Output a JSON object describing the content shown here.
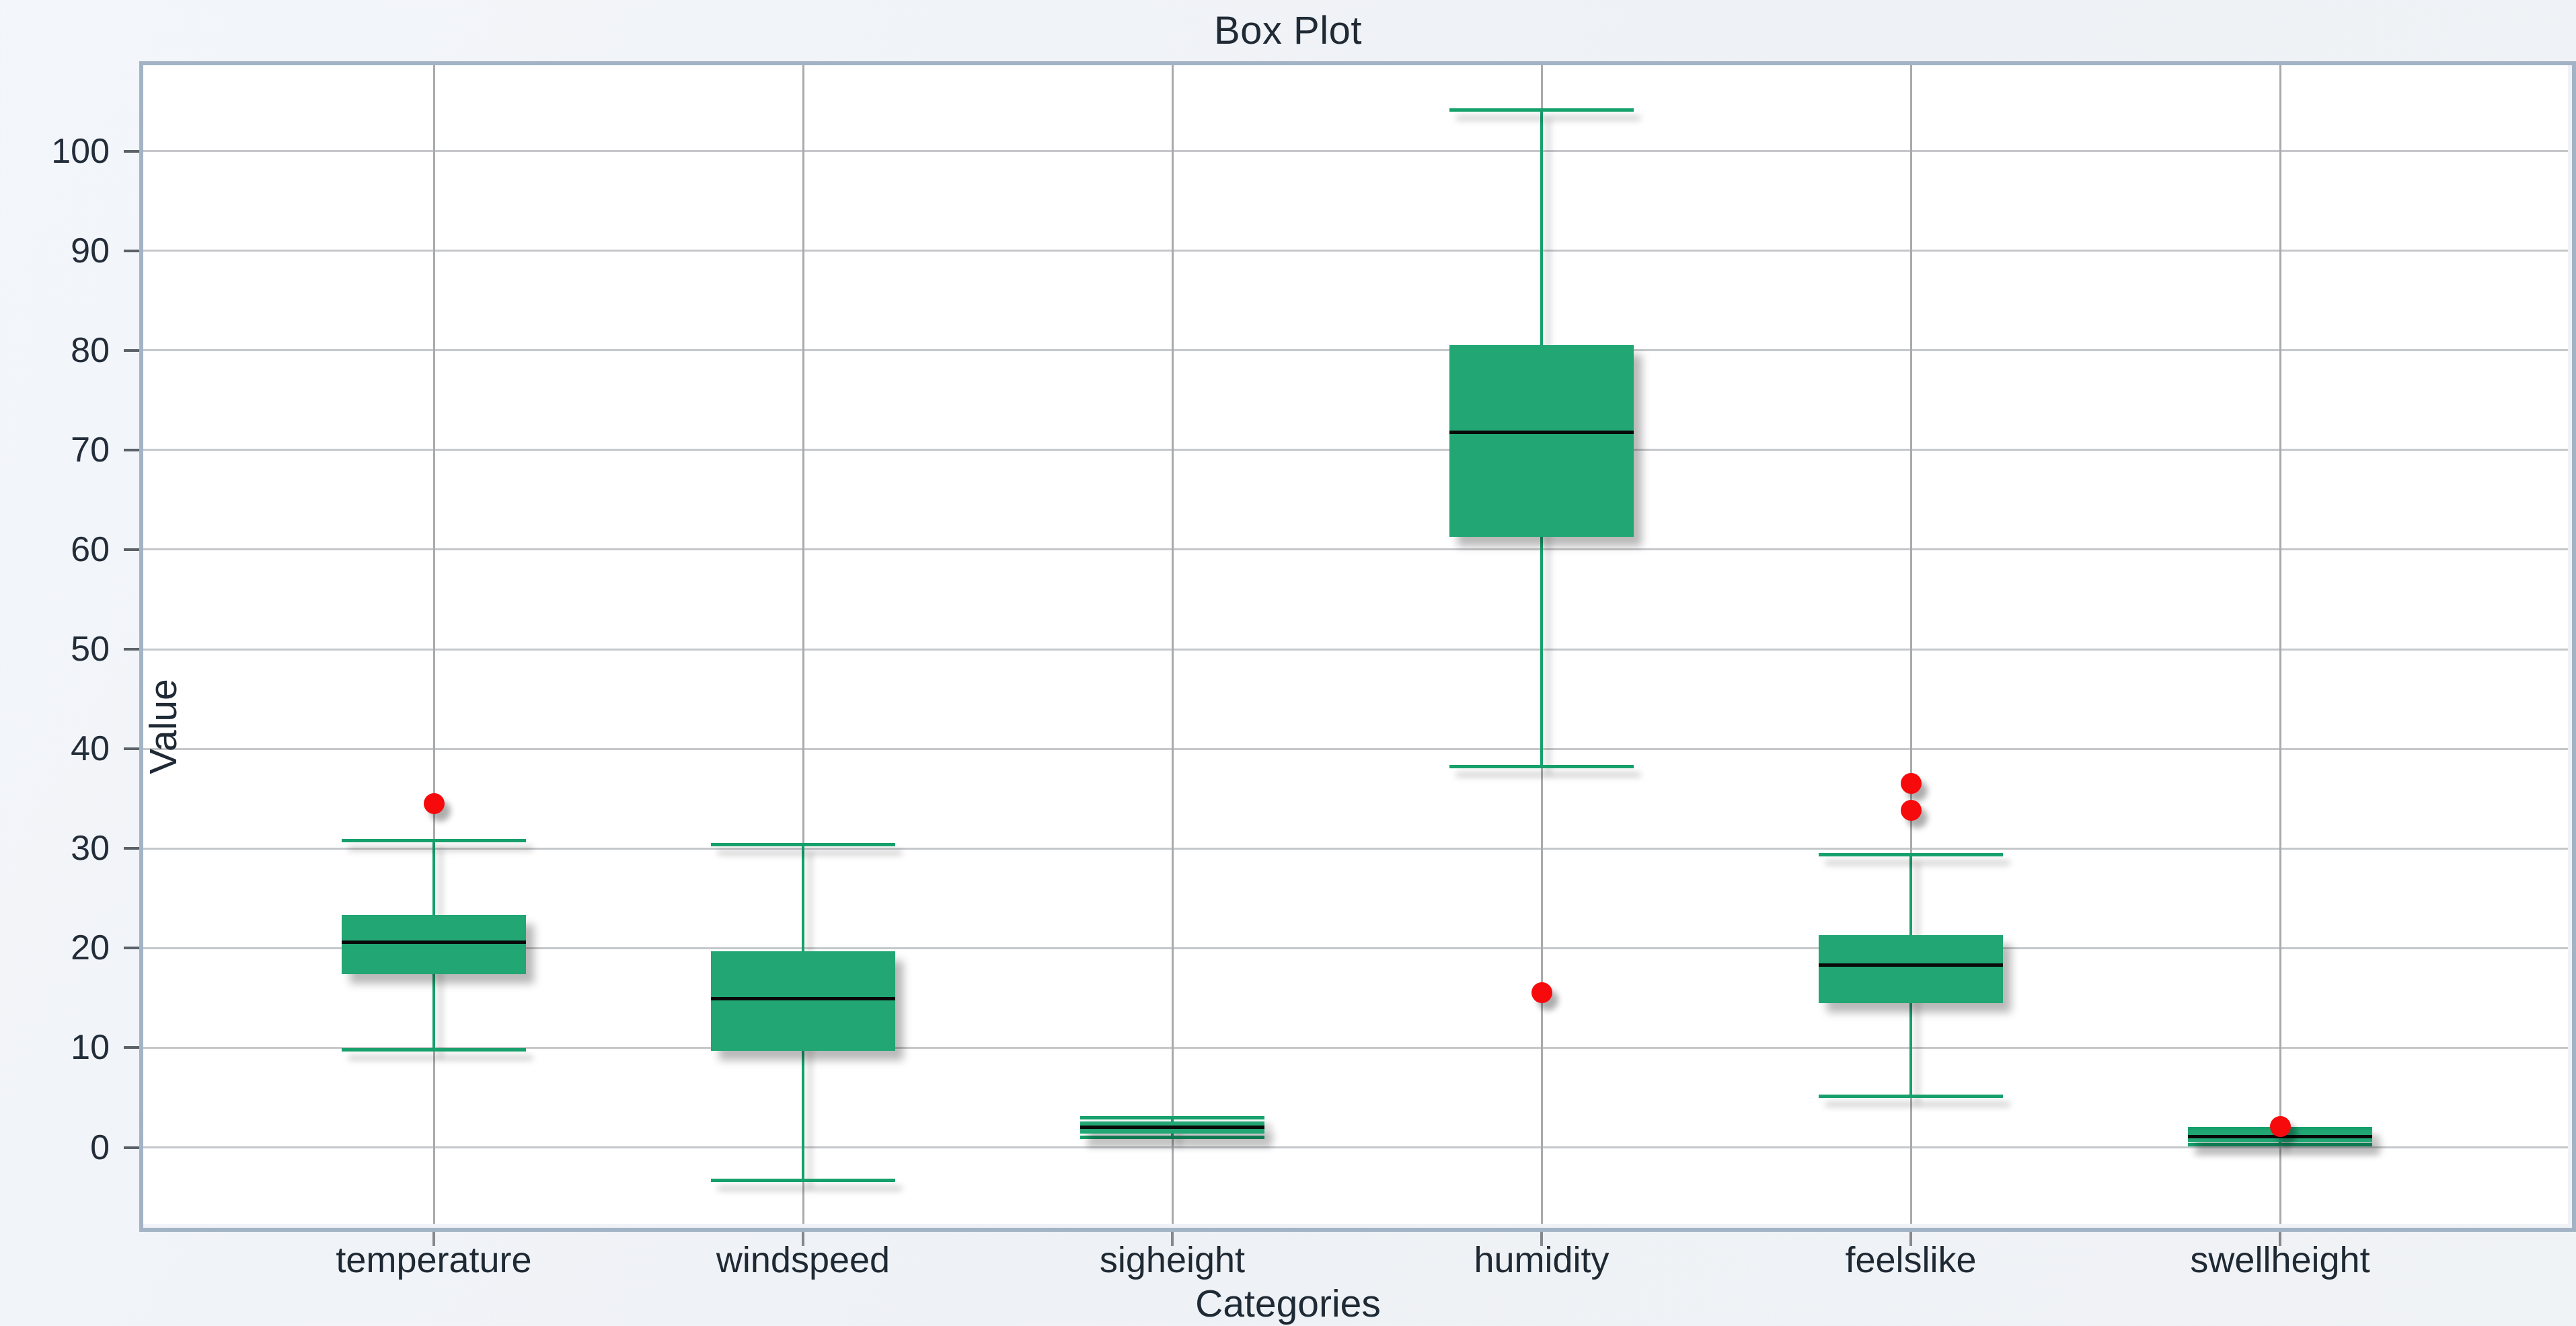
{
  "page": {
    "title": "Box Plot"
  },
  "chart_data": {
    "type": "box",
    "title": "Box Plot",
    "xlabel": "Categories",
    "ylabel": "Value",
    "ylim": [
      -7.5,
      108.5
    ],
    "yticks": [
      0,
      10,
      20,
      30,
      40,
      50,
      60,
      70,
      80,
      90,
      100
    ],
    "grid": "on",
    "legend": "none",
    "categories": [
      "temperature",
      "windspeed",
      "sigheight",
      "humidity",
      "feelslike",
      "swellheight"
    ],
    "series": [
      {
        "name": "temperature",
        "min": 9.8,
        "q1": 17.4,
        "median": 20.6,
        "q3": 23.3,
        "max": 30.8,
        "outliers": [
          34.5
        ]
      },
      {
        "name": "windspeed",
        "min": -3.3,
        "q1": 9.7,
        "median": 14.9,
        "q3": 19.7,
        "max": 30.4,
        "outliers": []
      },
      {
        "name": "sigheight",
        "min": 1.0,
        "q1": 1.4,
        "median": 2.0,
        "q3": 2.6,
        "max": 3.0,
        "outliers": []
      },
      {
        "name": "humidity",
        "min": 38.2,
        "q1": 61.3,
        "median": 71.8,
        "q3": 80.5,
        "max": 104.1,
        "outliers": [
          15.5
        ]
      },
      {
        "name": "feelslike",
        "min": 5.1,
        "q1": 14.5,
        "median": 18.3,
        "q3": 21.3,
        "max": 29.4,
        "outliers": [
          36.5,
          33.8
        ]
      },
      {
        "name": "swellheight",
        "min": 0.3,
        "q1": 0.5,
        "median": 1.1,
        "q3": 1.7,
        "max": 1.9,
        "outliers": [
          2.1
        ]
      }
    ],
    "colors": {
      "box_fill": "#21a674",
      "whisker": "#16a06c",
      "median": "#090909",
      "outlier": "#f60a0c",
      "hgrid": "#c5c7ca",
      "vgrid": "#a8aaac",
      "frame": "#a3b3c6",
      "text": "#1f2a35",
      "plot_bg": "#ffffff",
      "page_bg": "#eff2f6"
    }
  }
}
